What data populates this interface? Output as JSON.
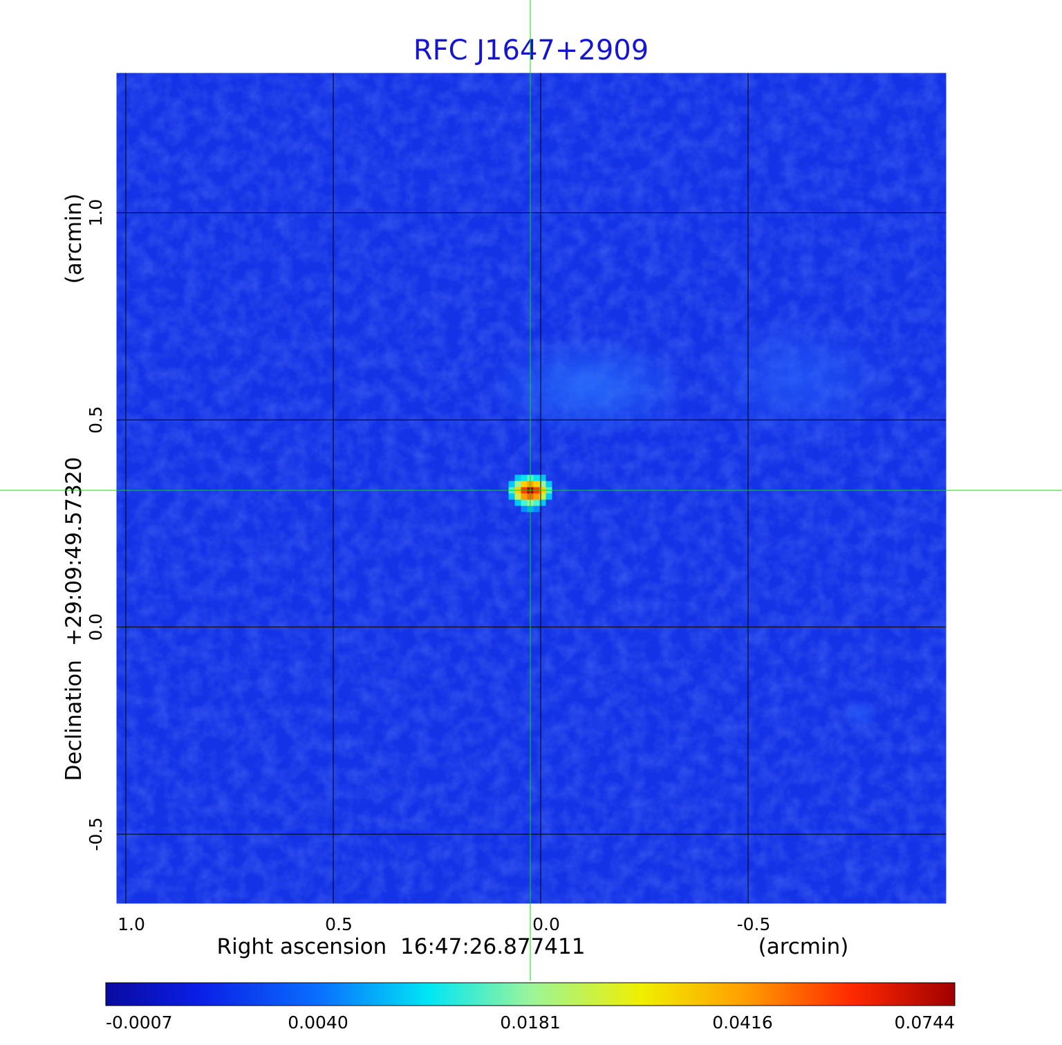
{
  "chart_data": {
    "type": "heatmap",
    "title": "RFC J1647+2909",
    "xlabel": "Right ascension  16:47:26.877411",
    "xunit": "(arcmin)",
    "ylabel": "Declination  +29:09:49.57320",
    "yunit": "(arcmin)",
    "x_ticks": [
      1.0,
      0.5,
      0.0,
      -0.5
    ],
    "x_tick_labels": [
      "1.0",
      "0.5",
      "0.0",
      "-0.5"
    ],
    "y_ticks": [
      1.0,
      0.5,
      0.0,
      -0.5
    ],
    "y_tick_labels": [
      "1.0",
      "0.5",
      "0.0",
      "-0.5"
    ],
    "xlim": [
      1.025,
      -0.98
    ],
    "ylim": [
      -0.67,
      1.34
    ],
    "grid": true,
    "crosshair": {
      "x": 0.025,
      "y": 0.33
    },
    "peak": {
      "x": 0.025,
      "y": 0.33,
      "value": 0.0744
    },
    "colorbar": {
      "ticks": [
        -0.0007,
        0.004,
        0.0181,
        0.0416,
        0.0744
      ],
      "tick_labels": [
        "-0.0007",
        "0.0040",
        "0.0181",
        "0.0416",
        "0.0744"
      ],
      "min": -0.0007,
      "max": 0.0744,
      "colormap": "jet"
    }
  },
  "colors": {
    "title": "#1414d2",
    "background_field": "#1432e6",
    "grid": "#000000",
    "crosshair": "#00e000",
    "frame": "#ffffff"
  }
}
